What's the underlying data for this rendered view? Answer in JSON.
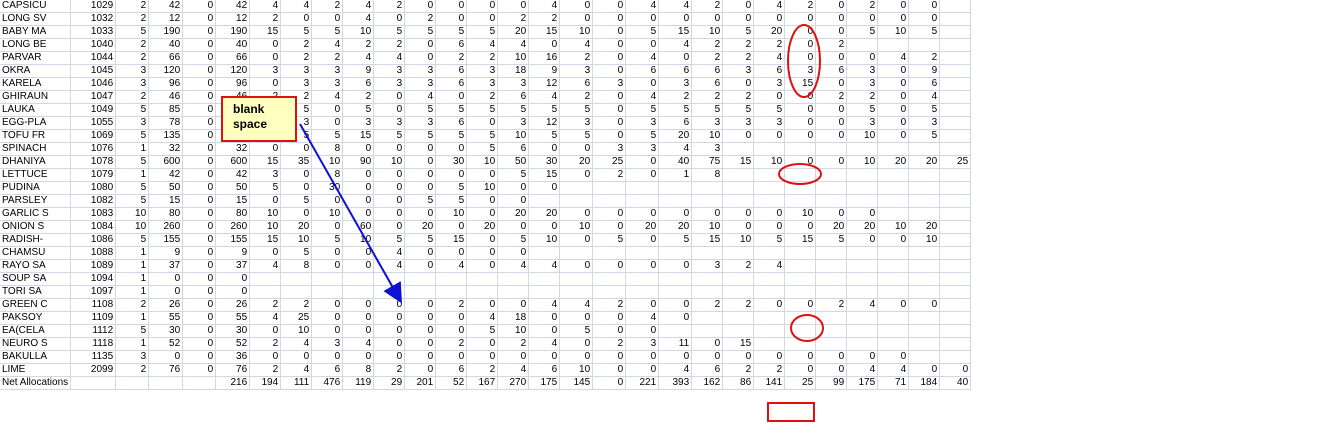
{
  "sheet": {
    "rows": [
      [
        "CAPSICU",
        "1029",
        "2",
        "42",
        "0",
        "42",
        "4",
        "4",
        "2",
        "4",
        "2",
        "0",
        "0",
        "0",
        "0",
        "4",
        "0",
        "0",
        "4",
        "4",
        "2",
        "0",
        "4",
        "2",
        "0",
        "2",
        "0",
        "0"
      ],
      [
        "LONG SV",
        "1032",
        "2",
        "12",
        "0",
        "12",
        "2",
        "0",
        "0",
        "4",
        "0",
        "2",
        "0",
        "0",
        "2",
        "2",
        "0",
        "0",
        "0",
        "0",
        "0",
        "0",
        "0",
        "0",
        "0",
        "0",
        "0",
        "0"
      ],
      [
        "BABY MA",
        "1033",
        "5",
        "190",
        "0",
        "190",
        "15",
        "5",
        "5",
        "10",
        "5",
        "5",
        "5",
        "5",
        "20",
        "15",
        "10",
        "0",
        "5",
        "15",
        "10",
        "5",
        "20",
        "0",
        "0",
        "5",
        "10",
        "5"
      ],
      [
        "LONG BE",
        "1040",
        "2",
        "40",
        "0",
        "40",
        "0",
        "2",
        "4",
        "2",
        "2",
        "0",
        "6",
        "4",
        "4",
        "0",
        "4",
        "0",
        "0",
        "4",
        "2",
        "2",
        "2",
        "0",
        "2",
        "",
        "",
        ""
      ],
      [
        "PARVAR",
        "1044",
        "2",
        "66",
        "0",
        "66",
        "0",
        "2",
        "2",
        "4",
        "4",
        "0",
        "2",
        "2",
        "10",
        "16",
        "2",
        "0",
        "4",
        "0",
        "2",
        "2",
        "4",
        "0",
        "0",
        "0",
        "4",
        "2"
      ],
      [
        "OKRA",
        "1045",
        "3",
        "120",
        "0",
        "120",
        "3",
        "3",
        "3",
        "9",
        "3",
        "3",
        "6",
        "3",
        "18",
        "9",
        "3",
        "0",
        "6",
        "6",
        "6",
        "3",
        "6",
        "3",
        "6",
        "3",
        "0",
        "9"
      ],
      [
        "KARELA",
        "1046",
        "3",
        "96",
        "0",
        "96",
        "0",
        "3",
        "3",
        "6",
        "3",
        "3",
        "6",
        "3",
        "3",
        "12",
        "6",
        "3",
        "0",
        "3",
        "6",
        "0",
        "3",
        "15",
        "0",
        "3",
        "0",
        "6"
      ],
      [
        "GHIRAUN",
        "1047",
        "2",
        "46",
        "0",
        "46",
        "2",
        "2",
        "4",
        "2",
        "0",
        "4",
        "0",
        "2",
        "6",
        "4",
        "2",
        "0",
        "4",
        "2",
        "2",
        "2",
        "0",
        "0",
        "2",
        "2",
        "0",
        "4"
      ],
      [
        "LAUKA",
        "1049",
        "5",
        "85",
        "0",
        "85",
        "0",
        "5",
        "0",
        "5",
        "0",
        "5",
        "5",
        "5",
        "5",
        "5",
        "5",
        "0",
        "5",
        "5",
        "5",
        "5",
        "5",
        "0",
        "0",
        "5",
        "0",
        "5"
      ],
      [
        "EGG-PLA",
        "1055",
        "3",
        "78",
        "0",
        "78",
        "9",
        "3",
        "0",
        "3",
        "3",
        "3",
        "6",
        "0",
        "3",
        "12",
        "3",
        "0",
        "3",
        "6",
        "3",
        "3",
        "3",
        "0",
        "0",
        "3",
        "0",
        "3"
      ],
      [
        "TOFU FR",
        "1069",
        "5",
        "135",
        "0",
        "135",
        "10",
        "5",
        "5",
        "15",
        "5",
        "5",
        "5",
        "5",
        "10",
        "5",
        "5",
        "0",
        "5",
        "20",
        "10",
        "0",
        "0",
        "0",
        "0",
        "10",
        "0",
        "5"
      ],
      [
        "SPINACH",
        "1076",
        "1",
        "32",
        "0",
        "32",
        "0",
        "0",
        "8",
        "0",
        "0",
        "0",
        "0",
        "5",
        "6",
        "0",
        "0",
        "3",
        "3",
        "4",
        "3",
        "",
        "",
        "",
        "",
        "",
        "",
        ""
      ],
      [
        "DHANIYA",
        "1078",
        "5",
        "600",
        "0",
        "600",
        "15",
        "35",
        "10",
        "90",
        "10",
        "0",
        "30",
        "10",
        "50",
        "30",
        "20",
        "25",
        "0",
        "40",
        "75",
        "15",
        "10",
        "0",
        "0",
        "10",
        "20",
        "20",
        "25"
      ],
      [
        "LETTUCE",
        "1079",
        "1",
        "42",
        "0",
        "42",
        "3",
        "0",
        "8",
        "0",
        "0",
        "0",
        "0",
        "0",
        "5",
        "15",
        "0",
        "2",
        "0",
        "1",
        "8",
        "",
        "",
        "",
        "",
        "",
        "",
        ""
      ],
      [
        "PUDINA",
        "1080",
        "5",
        "50",
        "0",
        "50",
        "5",
        "0",
        "30",
        "0",
        "0",
        "0",
        "5",
        "10",
        "0",
        "0",
        "",
        "",
        "",
        "",
        "",
        "",
        "",
        "",
        "",
        "",
        "",
        ""
      ],
      [
        "PARSLEY",
        "1082",
        "5",
        "15",
        "0",
        "15",
        "0",
        "5",
        "0",
        "0",
        "0",
        "5",
        "5",
        "0",
        "0",
        "",
        "",
        "",
        "",
        "",
        "",
        "",
        "",
        "",
        "",
        "",
        "",
        ""
      ],
      [
        "GARLIC S",
        "1083",
        "10",
        "80",
        "0",
        "80",
        "10",
        "0",
        "10",
        "0",
        "0",
        "0",
        "10",
        "0",
        "20",
        "20",
        "0",
        "0",
        "0",
        "0",
        "0",
        "0",
        "0",
        "10",
        "0",
        "0",
        "",
        ""
      ],
      [
        "ONION S",
        "1084",
        "10",
        "260",
        "0",
        "260",
        "10",
        "20",
        "0",
        "60",
        "0",
        "20",
        "0",
        "20",
        "0",
        "0",
        "10",
        "0",
        "20",
        "20",
        "10",
        "0",
        "0",
        "0",
        "20",
        "20",
        "10",
        "20"
      ],
      [
        "RADISH-",
        "1086",
        "5",
        "155",
        "0",
        "155",
        "15",
        "10",
        "5",
        "10",
        "5",
        "5",
        "15",
        "0",
        "5",
        "10",
        "0",
        "5",
        "0",
        "5",
        "15",
        "10",
        "5",
        "15",
        "5",
        "0",
        "0",
        "10"
      ],
      [
        "CHAMSU",
        "1088",
        "1",
        "9",
        "0",
        "9",
        "0",
        "5",
        "0",
        "0",
        "4",
        "0",
        "0",
        "0",
        "0",
        "",
        "",
        "",
        "",
        "",
        "",
        "",
        "",
        "",
        "",
        "",
        "",
        ""
      ],
      [
        "RAYO SA",
        "1089",
        "1",
        "37",
        "0",
        "37",
        "4",
        "8",
        "0",
        "0",
        "4",
        "0",
        "4",
        "0",
        "4",
        "4",
        "0",
        "0",
        "0",
        "0",
        "3",
        "2",
        "4",
        "",
        "",
        "",
        "",
        ""
      ],
      [
        "SOUP SA",
        "1094",
        "1",
        "0",
        "0",
        "0",
        "",
        "",
        "",
        "",
        "",
        "",
        "",
        "",
        "",
        "",
        "",
        "",
        "",
        "",
        "",
        "",
        "",
        "",
        "",
        "",
        "",
        ""
      ],
      [
        "TORI SA",
        "1097",
        "1",
        "0",
        "0",
        "0",
        "",
        "",
        "",
        "",
        "",
        "",
        "",
        "",
        "",
        "",
        "",
        "",
        "",
        "",
        "",
        "",
        "",
        "",
        "",
        "",
        "",
        ""
      ],
      [
        "GREEN C",
        "1108",
        "2",
        "26",
        "0",
        "26",
        "2",
        "2",
        "0",
        "0",
        "0",
        "0",
        "2",
        "0",
        "0",
        "4",
        "4",
        "2",
        "0",
        "0",
        "2",
        "2",
        "0",
        "0",
        "2",
        "4",
        "0",
        "0"
      ],
      [
        "PAKSOY",
        "1109",
        "1",
        "55",
        "0",
        "55",
        "4",
        "25",
        "0",
        "0",
        "0",
        "0",
        "0",
        "4",
        "18",
        "0",
        "0",
        "0",
        "4",
        "0",
        "",
        "",
        "",
        "",
        "",
        "",
        "",
        ""
      ],
      [
        "EA(CELA",
        "1112",
        "5",
        "30",
        "0",
        "30",
        "0",
        "10",
        "0",
        "0",
        "0",
        "0",
        "0",
        "5",
        "10",
        "0",
        "5",
        "0",
        "0",
        "",
        "",
        "",
        "",
        "",
        "",
        "",
        "",
        ""
      ],
      [
        "NEURO S",
        "1118",
        "1",
        "52",
        "0",
        "52",
        "2",
        "4",
        "3",
        "4",
        "0",
        "0",
        "2",
        "0",
        "2",
        "4",
        "0",
        "2",
        "3",
        "11",
        "0",
        "15",
        "",
        "",
        "",
        "",
        "",
        ""
      ],
      [
        "BAKULLA",
        "1135",
        "3",
        "0",
        "0",
        "36",
        "0",
        "0",
        "0",
        "0",
        "0",
        "0",
        "0",
        "0",
        "0",
        "0",
        "0",
        "0",
        "0",
        "0",
        "0",
        "0",
        "0",
        "0",
        "0",
        "0",
        "0",
        ""
      ],
      [
        "LIME",
        "2099",
        "2",
        "76",
        "0",
        "76",
        "2",
        "4",
        "6",
        "8",
        "2",
        "0",
        "6",
        "2",
        "4",
        "6",
        "10",
        "0",
        "0",
        "4",
        "6",
        "2",
        "2",
        "0",
        "0",
        "4",
        "4",
        "0",
        "0"
      ],
      [
        "Net Allocations",
        "",
        "",
        "",
        "",
        "216",
        "194",
        "111",
        "476",
        "119",
        "29",
        "201",
        "52",
        "167",
        "270",
        "175",
        "145",
        "0",
        "221",
        "393",
        "162",
        "86",
        "141",
        "25",
        "99",
        "175",
        "71",
        "184",
        "40"
      ]
    ]
  },
  "callout": {
    "text_line1": "blank",
    "text_line2": "space"
  },
  "colors": {
    "highlight": "#e01010",
    "arrow": "#1010d0",
    "callout_fill": "#ffffc0"
  }
}
